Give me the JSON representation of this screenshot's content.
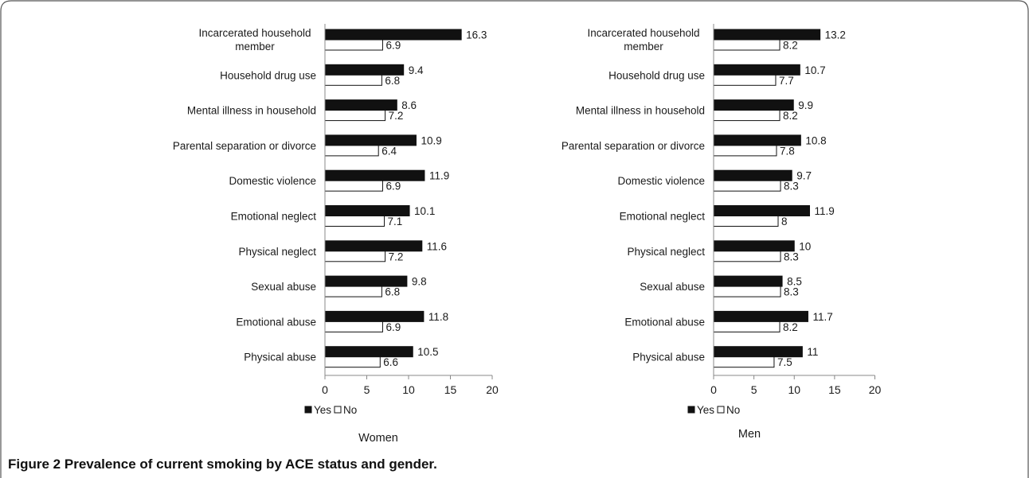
{
  "figure": {
    "label": "Figure 2",
    "caption": "Prevalence of current smoking by ACE status and gender."
  },
  "chart_data": [
    {
      "type": "bar",
      "orientation": "horizontal",
      "title": "",
      "xlabel": "Women",
      "ylabel": "",
      "xlim": [
        0,
        20
      ],
      "xticks": [
        0,
        5,
        10,
        15,
        20
      ],
      "grid": false,
      "legend_position": "bottom",
      "categories": [
        "Incarcerated household member",
        "Household drug use",
        "Mental illness in household",
        "Parental separation or divorce",
        "Domestic violence",
        "Emotional neglect",
        "Physical neglect",
        "Sexual abuse",
        "Emotional abuse",
        "Physical abuse"
      ],
      "series": [
        {
          "name": "Yes",
          "color": "#111111",
          "values": [
            16.3,
            9.4,
            8.6,
            10.9,
            11.9,
            10.1,
            11.6,
            9.8,
            11.8,
            10.5
          ]
        },
        {
          "name": "No",
          "color": "#ffffff",
          "values": [
            6.9,
            6.8,
            7.2,
            6.4,
            6.9,
            7.1,
            7.2,
            6.8,
            6.9,
            6.6
          ]
        }
      ]
    },
    {
      "type": "bar",
      "orientation": "horizontal",
      "title": "",
      "xlabel": "Men",
      "ylabel": "",
      "xlim": [
        0,
        20
      ],
      "xticks": [
        0,
        5,
        10,
        15,
        20
      ],
      "grid": false,
      "legend_position": "bottom",
      "categories": [
        "Incarcerated household member",
        "Household drug use",
        "Mental illness in household",
        "Parental separation or divorce",
        "Domestic violence",
        "Emotional neglect",
        "Physical neglect",
        "Sexual abuse",
        "Emotional abuse",
        "Physical abuse"
      ],
      "series": [
        {
          "name": "Yes",
          "color": "#111111",
          "values": [
            13.2,
            10.7,
            9.9,
            10.8,
            9.7,
            11.9,
            10,
            8.5,
            11.7,
            11
          ]
        },
        {
          "name": "No",
          "color": "#ffffff",
          "values": [
            8.2,
            7.7,
            8.2,
            7.8,
            8.3,
            8,
            8.3,
            8.3,
            8.2,
            7.5
          ]
        }
      ]
    }
  ]
}
